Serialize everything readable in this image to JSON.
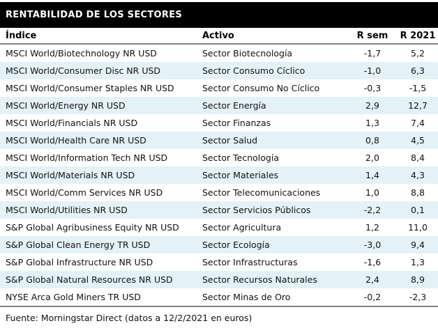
{
  "chart_data": {
    "type": "table",
    "title": "RENTABILIDAD DE LOS SECTORES",
    "columns": [
      "Índice",
      "Activo",
      "R sem",
      "R 2021"
    ],
    "rows": [
      {
        "indice": "MSCI World/Biotechnology NR USD",
        "activo": "Sector Biotecnología",
        "r_sem": "-1,7",
        "r_2021": "5,2"
      },
      {
        "indice": "MSCI World/Consumer Disc NR USD",
        "activo": "Sector Consumo Cíclico",
        "r_sem": "-1,0",
        "r_2021": "6,3"
      },
      {
        "indice": "MSCI World/Consumer Staples NR USD",
        "activo": "Sector Consumo No Cíclico",
        "r_sem": "-0,3",
        "r_2021": "-1,5"
      },
      {
        "indice": "MSCI World/Energy NR USD",
        "activo": "Sector Energía",
        "r_sem": "2,9",
        "r_2021": "12,7"
      },
      {
        "indice": "MSCI World/Financials NR USD",
        "activo": "Sector Finanzas",
        "r_sem": "1,3",
        "r_2021": "7,4"
      },
      {
        "indice": "MSCI World/Health Care NR USD",
        "activo": "Sector Salud",
        "r_sem": "0,8",
        "r_2021": "4,5"
      },
      {
        "indice": "MSCI World/Information Tech NR USD",
        "activo": "Sector Tecnología",
        "r_sem": "2,0",
        "r_2021": "8,4"
      },
      {
        "indice": "MSCI World/Materials NR USD",
        "activo": "Sector Materiales",
        "r_sem": "1,4",
        "r_2021": "4,3"
      },
      {
        "indice": "MSCI World/Comm Services NR USD",
        "activo": "Sector Telecomunicaciones",
        "r_sem": "1,0",
        "r_2021": "8,8"
      },
      {
        "indice": "MSCI World/Utilities NR USD",
        "activo": "Sector Servicios Públicos",
        "r_sem": "-2,2",
        "r_2021": "0,1"
      },
      {
        "indice": "S&P Global Agribusiness Equity NR USD",
        "activo": "Sector Agricultura",
        "r_sem": "1,2",
        "r_2021": "11,0"
      },
      {
        "indice": "S&P Global Clean Energy TR USD",
        "activo": "Sector Ecología",
        "r_sem": "-3,0",
        "r_2021": "9,4"
      },
      {
        "indice": "S&P Global Infrastructure NR USD",
        "activo": "Sector Infrastructuras",
        "r_sem": "-1,6",
        "r_2021": "1,3"
      },
      {
        "indice": "S&P Global Natural Resources NR USD",
        "activo": "Sector Recursos Naturales",
        "r_sem": "2,4",
        "r_2021": "8,9"
      },
      {
        "indice": "NYSE Arca Gold Miners TR USD",
        "activo": "Sector Minas de Oro",
        "r_sem": "-0,2",
        "r_2021": "-2,3"
      }
    ],
    "source": "Fuente: Morningstar Direct (datos a 12/2/2021 en euros)",
    "layout": {
      "grid": "off",
      "alternating_rows": true
    },
    "colors": {
      "title_bar_bg": "#000000",
      "title_bar_text": "#ffffff",
      "alt_row_bg": "#E4F2F7",
      "rule": "#808080",
      "body_text": "#111111"
    }
  }
}
